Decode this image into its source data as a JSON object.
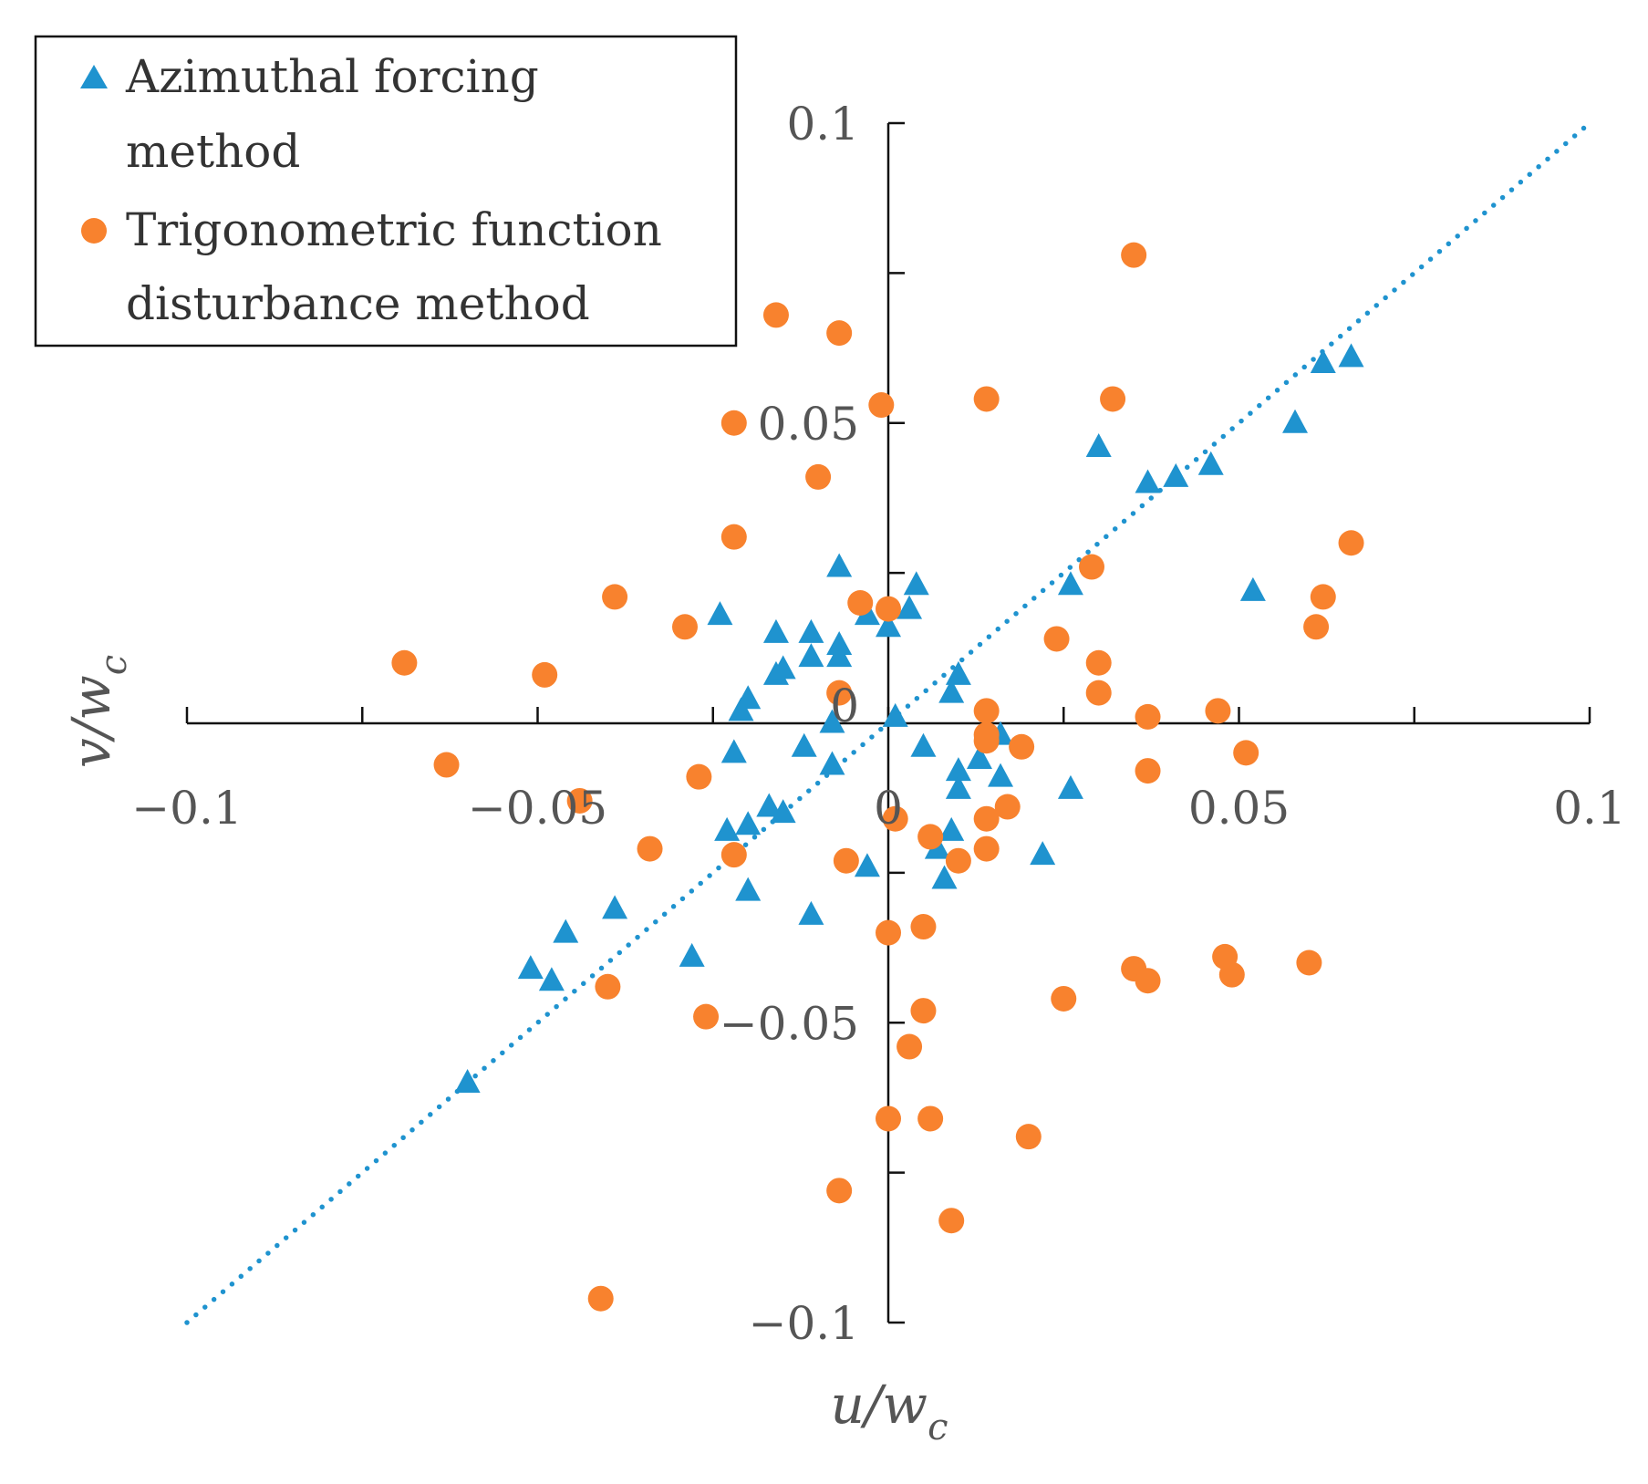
{
  "chart_data": {
    "type": "scatter",
    "title": "",
    "xlabel": {
      "main": "u/w",
      "sub": "c"
    },
    "ylabel": {
      "main": "v/w",
      "sub": "c"
    },
    "xlim": [
      -0.1,
      0.1
    ],
    "ylim": [
      -0.1,
      0.1
    ],
    "x_ticks": [
      -0.1,
      -0.075,
      -0.05,
      -0.025,
      0,
      0.025,
      0.05,
      0.075,
      0.1
    ],
    "y_ticks": [
      -0.1,
      -0.075,
      -0.05,
      -0.025,
      0,
      0.025,
      0.05,
      0.075,
      0.1
    ],
    "x_tick_labels": [
      {
        "value": -0.1,
        "text": "−0.1"
      },
      {
        "value": -0.05,
        "text": "−0.05"
      },
      {
        "value": 0,
        "text": "0"
      },
      {
        "value": 0.05,
        "text": "0.05"
      },
      {
        "value": 0.1,
        "text": "0.1"
      }
    ],
    "y_tick_labels": [
      {
        "value": 0.1,
        "text": "0.1"
      },
      {
        "value": 0.05,
        "text": "0.05"
      },
      {
        "value": 0,
        "text": "0"
      },
      {
        "value": -0.05,
        "text": "−0.05"
      },
      {
        "value": -0.1,
        "text": "−0.1"
      }
    ],
    "legend_position": "top-left",
    "legend": [
      {
        "lines": [
          "Azimuthal forcing",
          "method"
        ],
        "marker": "triangle",
        "color": "#1f93cf"
      },
      {
        "lines": [
          "Trigonometric function",
          "disturbance method"
        ],
        "marker": "circle",
        "color": "#f8822e"
      }
    ],
    "trendline": {
      "style": "dotted",
      "color": "#1f93cf",
      "x": [
        -0.1,
        0.1
      ],
      "y": [
        -0.1,
        0.1
      ]
    },
    "series": [
      {
        "name": "Azimuthal forcing method",
        "marker": "triangle",
        "color": "#1f93cf",
        "points": [
          [
            0.066,
            0.061
          ],
          [
            0.062,
            0.06
          ],
          [
            0.058,
            0.05
          ],
          [
            0.046,
            0.043
          ],
          [
            0.041,
            0.041
          ],
          [
            0.037,
            0.04
          ],
          [
            0.03,
            0.046
          ],
          [
            0.052,
            0.022
          ],
          [
            0.026,
            0.023
          ],
          [
            0.004,
            0.023
          ],
          [
            0.003,
            0.019
          ],
          [
            -0.007,
            0.026
          ],
          [
            -0.003,
            0.018
          ],
          [
            0.0,
            0.016
          ],
          [
            -0.024,
            0.018
          ],
          [
            -0.016,
            0.015
          ],
          [
            -0.011,
            0.015
          ],
          [
            -0.007,
            0.013
          ],
          [
            -0.007,
            0.011
          ],
          [
            -0.011,
            0.011
          ],
          [
            -0.016,
            0.008
          ],
          [
            -0.015,
            0.009
          ],
          [
            -0.02,
            0.004
          ],
          [
            -0.021,
            0.002
          ],
          [
            -0.008,
            0.0
          ],
          [
            0.001,
            0.001
          ],
          [
            0.01,
            0.008
          ],
          [
            0.009,
            0.005
          ],
          [
            0.016,
            -0.002
          ],
          [
            0.005,
            -0.004
          ],
          [
            0.013,
            -0.006
          ],
          [
            0.01,
            -0.008
          ],
          [
            -0.012,
            -0.004
          ],
          [
            -0.008,
            -0.007
          ],
          [
            -0.022,
            -0.005
          ],
          [
            0.01,
            -0.011
          ],
          [
            0.016,
            -0.009
          ],
          [
            -0.017,
            -0.014
          ],
          [
            -0.015,
            -0.015
          ],
          [
            -0.02,
            -0.017
          ],
          [
            -0.023,
            -0.018
          ],
          [
            0.026,
            -0.011
          ],
          [
            0.009,
            -0.018
          ],
          [
            0.007,
            -0.021
          ],
          [
            0.022,
            -0.022
          ],
          [
            -0.003,
            -0.024
          ],
          [
            0.008,
            -0.026
          ],
          [
            -0.02,
            -0.028
          ],
          [
            -0.011,
            -0.032
          ],
          [
            -0.039,
            -0.031
          ],
          [
            -0.046,
            -0.035
          ],
          [
            -0.028,
            -0.039
          ],
          [
            -0.051,
            -0.041
          ],
          [
            -0.048,
            -0.043
          ],
          [
            -0.06,
            -0.06
          ]
        ]
      },
      {
        "name": "Trigonometric function disturbance method",
        "marker": "circle",
        "color": "#f8822e",
        "points": [
          [
            0.035,
            0.078
          ],
          [
            -0.016,
            0.068
          ],
          [
            -0.007,
            0.065
          ],
          [
            0.014,
            0.054
          ],
          [
            0.032,
            0.054
          ],
          [
            -0.001,
            0.053
          ],
          [
            -0.022,
            0.05
          ],
          [
            -0.01,
            0.041
          ],
          [
            -0.022,
            0.031
          ],
          [
            0.066,
            0.03
          ],
          [
            0.029,
            0.026
          ],
          [
            -0.039,
            0.021
          ],
          [
            -0.004,
            0.02
          ],
          [
            0.0,
            0.019
          ],
          [
            -0.029,
            0.016
          ],
          [
            0.062,
            0.021
          ],
          [
            0.061,
            0.016
          ],
          [
            0.024,
            0.014
          ],
          [
            -0.069,
            0.01
          ],
          [
            -0.049,
            0.008
          ],
          [
            0.03,
            0.01
          ],
          [
            -0.007,
            0.005
          ],
          [
            0.03,
            0.005
          ],
          [
            0.014,
            0.002
          ],
          [
            0.037,
            0.001
          ],
          [
            0.047,
            0.002
          ],
          [
            0.014,
            -0.002
          ],
          [
            0.014,
            -0.003
          ],
          [
            0.019,
            -0.004
          ],
          [
            0.051,
            -0.005
          ],
          [
            -0.063,
            -0.007
          ],
          [
            -0.027,
            -0.009
          ],
          [
            0.037,
            -0.008
          ],
          [
            -0.044,
            -0.013
          ],
          [
            0.017,
            -0.014
          ],
          [
            0.001,
            -0.016
          ],
          [
            0.014,
            -0.016
          ],
          [
            0.006,
            -0.019
          ],
          [
            -0.034,
            -0.021
          ],
          [
            0.014,
            -0.021
          ],
          [
            -0.022,
            -0.022
          ],
          [
            -0.006,
            -0.023
          ],
          [
            0.01,
            -0.023
          ],
          [
            0.005,
            -0.034
          ],
          [
            0.0,
            -0.035
          ],
          [
            0.048,
            -0.039
          ],
          [
            0.06,
            -0.04
          ],
          [
            0.035,
            -0.041
          ],
          [
            0.049,
            -0.042
          ],
          [
            0.037,
            -0.043
          ],
          [
            -0.04,
            -0.044
          ],
          [
            0.025,
            -0.046
          ],
          [
            0.005,
            -0.048
          ],
          [
            -0.026,
            -0.049
          ],
          [
            0.003,
            -0.054
          ],
          [
            0.0,
            -0.066
          ],
          [
            0.006,
            -0.066
          ],
          [
            0.02,
            -0.069
          ],
          [
            -0.007,
            -0.078
          ],
          [
            0.009,
            -0.083
          ],
          [
            -0.041,
            -0.096
          ]
        ]
      }
    ]
  }
}
